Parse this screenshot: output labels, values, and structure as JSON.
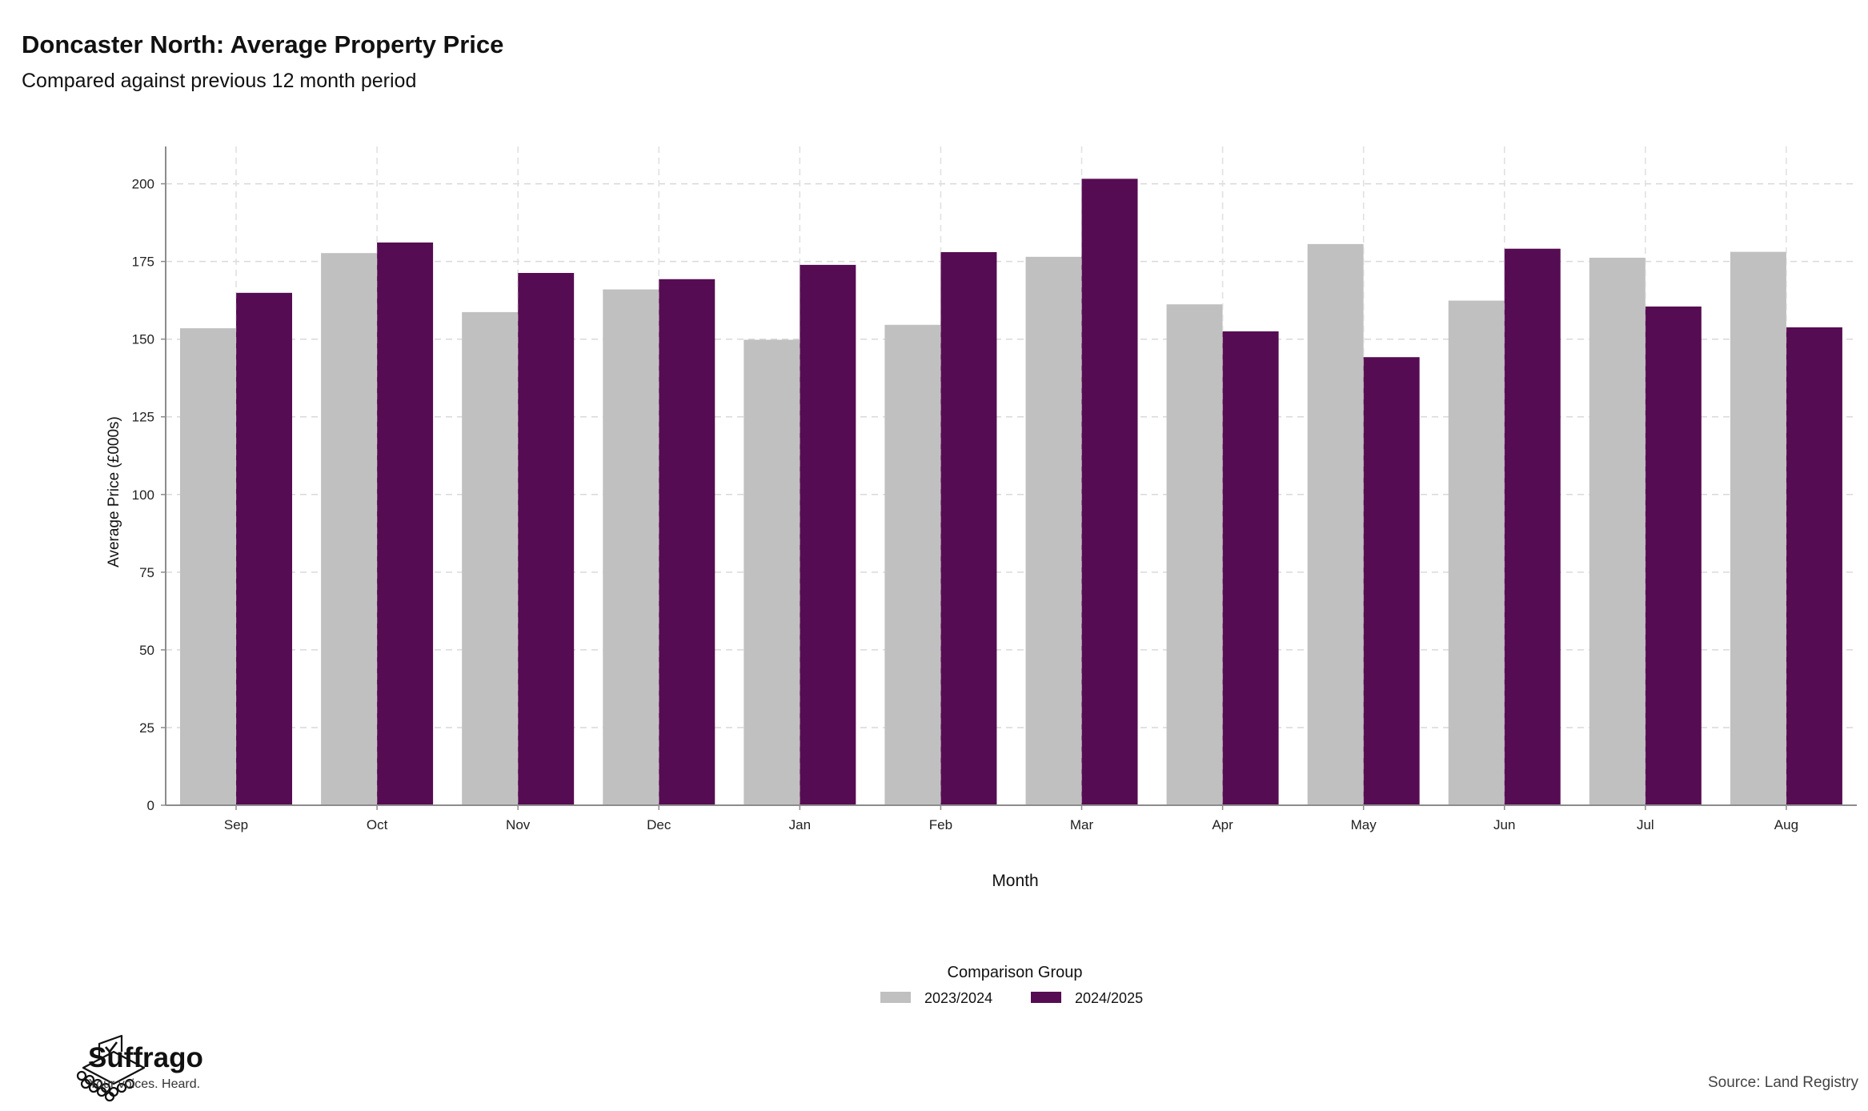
{
  "header": {
    "title": "Doncaster North: Average Property Price",
    "subtitle": "Compared against previous 12 month period"
  },
  "footer": {
    "brand_name": "Suffrago",
    "brand_tagline": "Your voices. Heard.",
    "source": "Source: Land Registry"
  },
  "colors": {
    "series_2023_2024": "#c0c0c0",
    "series_2024_2025": "#560c52",
    "grid": "#d9d9d9",
    "axis": "#8c8c8c"
  },
  "chart_data": {
    "type": "bar",
    "title": "Doncaster North: Average Property Price",
    "subtitle": "Compared against previous 12 month period",
    "xlabel": "Month",
    "ylabel": "Average Price (£000s)",
    "ylim": [
      0,
      212
    ],
    "yticks": [
      0,
      25,
      50,
      75,
      100,
      125,
      150,
      175,
      200
    ],
    "grid": true,
    "legend_title": "Comparison Group",
    "legend_position": "bottom",
    "categories": [
      "Sep",
      "Oct",
      "Nov",
      "Dec",
      "Jan",
      "Feb",
      "Mar",
      "Apr",
      "May",
      "Jun",
      "Jul",
      "Aug"
    ],
    "series": [
      {
        "name": "2023/2024",
        "color": "#c0c0c0",
        "values": [
          153.5,
          177.7,
          158.7,
          166.0,
          149.8,
          154.6,
          176.5,
          161.2,
          180.6,
          162.4,
          176.2,
          178.1
        ]
      },
      {
        "name": "2024/2025",
        "color": "#560c52",
        "values": [
          164.9,
          181.1,
          171.3,
          169.3,
          173.9,
          178.0,
          201.6,
          152.5,
          144.2,
          179.1,
          160.5,
          153.8
        ]
      }
    ]
  }
}
